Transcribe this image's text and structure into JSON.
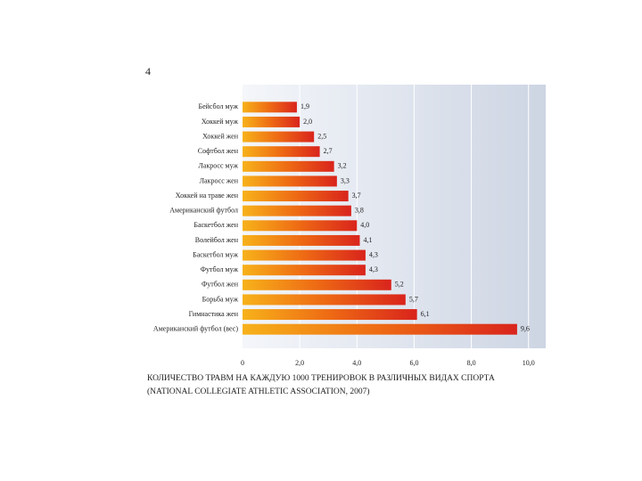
{
  "chart_data": {
    "type": "bar",
    "orientation": "horizontal",
    "title": "4",
    "categories": [
      "Бейсбол муж",
      "Хоккей муж",
      "Хоккей жен",
      "Софтбол жен",
      "Лакросс муж",
      "Лакросс жен",
      "Хоккей на траве жен",
      "Американский футбол",
      "Баскетбол жен",
      "Волейбол жен",
      "Баскетбол муж",
      "Футбол муж",
      "Футбол жен",
      "Борьба муж",
      "Гимнастика жен",
      "Американский футбол (вес)"
    ],
    "values": [
      1.9,
      2.0,
      2.5,
      2.7,
      3.2,
      3.3,
      3.7,
      3.8,
      4.0,
      4.1,
      4.3,
      4.3,
      5.2,
      5.7,
      6.1,
      9.6
    ],
    "value_labels": [
      "1,9",
      "2,0",
      "2,5",
      "2,7",
      "3,2",
      "3,3",
      "3,7",
      "3,8",
      "4,0",
      "4,1",
      "4,3",
      "4,3",
      "5,2",
      "5,7",
      "6,1",
      "9,6"
    ],
    "xlim": [
      0,
      10.6
    ],
    "xticks": [
      0,
      {
        "value": 2,
        "label": "2,0"
      },
      {
        "value": 4,
        "label": "4,0"
      },
      {
        "value": 6,
        "label": "6,0"
      },
      {
        "value": 8,
        "label": "8,0"
      },
      {
        "value": 10,
        "label": "10,0"
      }
    ],
    "grid": true,
    "caption": [
      "КОЛИЧЕСТВО ТРАВМ НА КАЖДУЮ 1000 ТРЕНИРОВОК В РАЗЛИЧНЫХ ВИДАХ СПОРТА",
      "(NATIONAL COLLEGIATE ATHLETIC ASSOCIATION, 2007)"
    ]
  }
}
